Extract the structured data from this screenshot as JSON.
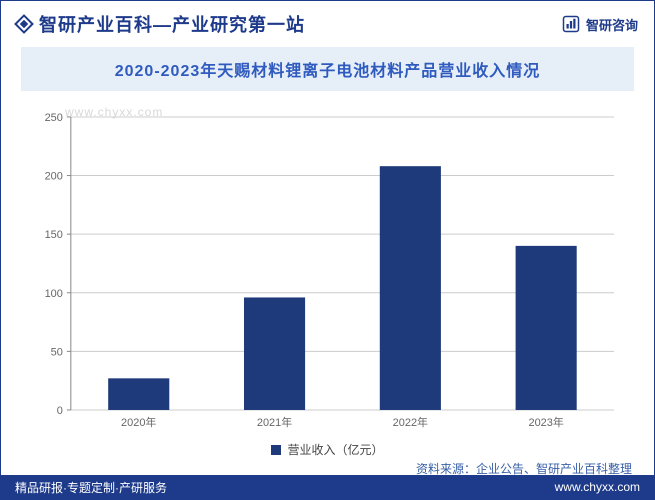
{
  "brand": {
    "title": "智研产业百科—产业研究第一站",
    "logo_label": "智研咨询"
  },
  "watermark": "www.chyxx.com",
  "chart": {
    "type": "bar",
    "title": "2020-2023年天赐材料锂离子电池材料产品营业收入情况",
    "categories": [
      "2020年",
      "2021年",
      "2022年",
      "2023年"
    ],
    "values": [
      27,
      96,
      208,
      140
    ],
    "bar_color": "#1f3a7a",
    "background_color": "#ffffff",
    "grid_color": "#cccccc",
    "axis_color": "#888888",
    "tick_label_color": "#666666",
    "tick_fontsize": 11,
    "ylim": [
      0,
      250
    ],
    "ytick_step": 50,
    "bar_width_ratio": 0.45,
    "legend_label": "营业收入（亿元）",
    "title_fontsize": 16,
    "title_color": "#2f5bbf"
  },
  "source": "资料来源：企业公告、智研产业百科整理",
  "footer": {
    "left": "精品研报·专题定制·产研服务",
    "right": "www.chyxx.com"
  },
  "colors": {
    "brand_primary": "#1e3a8a",
    "title_band_bg": "#e6eef8"
  }
}
